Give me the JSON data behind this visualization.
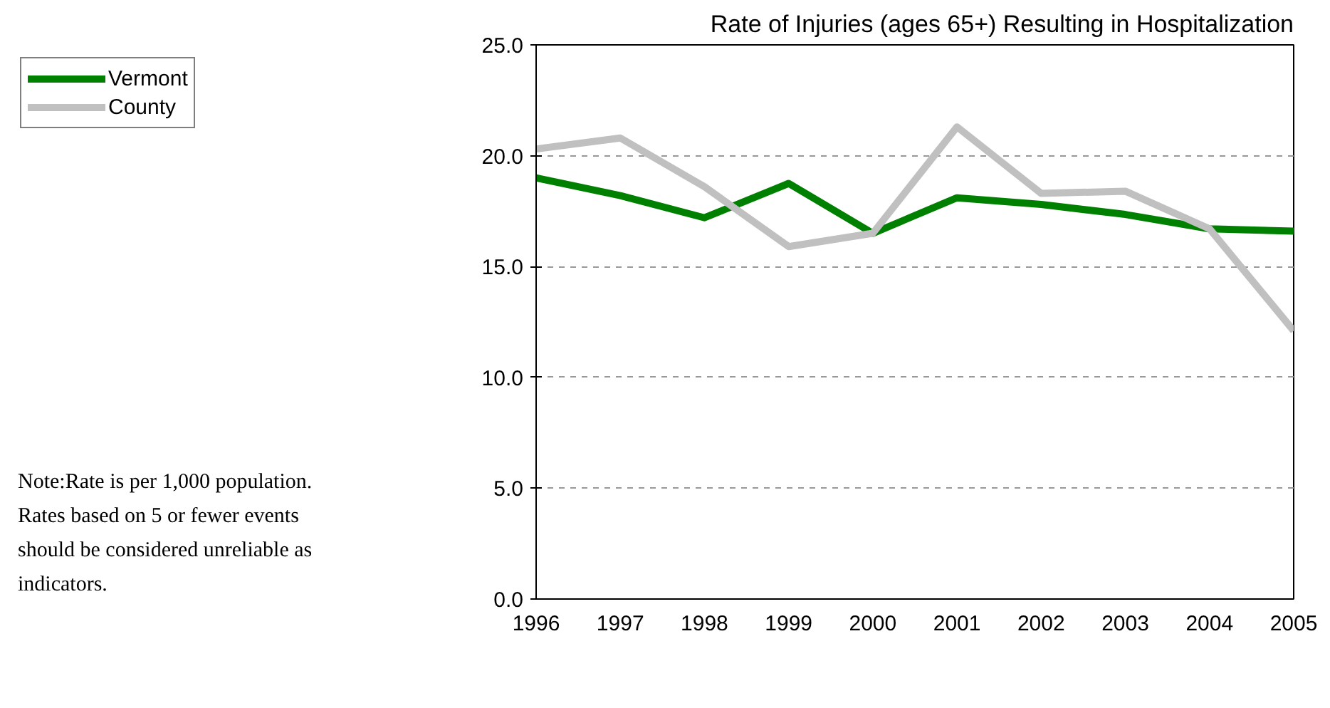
{
  "chart_data": {
    "type": "line",
    "title": "Rate of Injuries (ages 65+) Resulting in Hospitalization",
    "x": [
      1996,
      1997,
      1998,
      1999,
      2000,
      2001,
      2002,
      2003,
      2004,
      2005
    ],
    "series": [
      {
        "name": "Vermont",
        "color": "#008000",
        "values": [
          19.0,
          18.2,
          17.2,
          18.75,
          16.5,
          18.1,
          17.8,
          17.35,
          16.7,
          16.6
        ]
      },
      {
        "name": "County",
        "color": "#c0c0c0",
        "values": [
          20.3,
          20.8,
          18.6,
          15.9,
          16.5,
          21.3,
          18.3,
          18.4,
          16.7,
          12.1
        ]
      }
    ],
    "xlim": [
      1996,
      2005
    ],
    "xticks": [
      1996,
      1997,
      1998,
      1999,
      2000,
      2001,
      2002,
      2003,
      2004,
      2005
    ],
    "ylim": [
      0,
      25
    ],
    "yticks": [
      {
        "value": 0,
        "label": "0.0"
      },
      {
        "value": 5,
        "label": "5.0"
      },
      {
        "value": 10,
        "label": "10.0"
      },
      {
        "value": 15,
        "label": "15.0"
      },
      {
        "value": 20,
        "label": "20.0"
      },
      {
        "value": 25,
        "label": "25.0"
      }
    ],
    "grid": "y",
    "legend": "left",
    "line_style": "solid",
    "marker": "none",
    "annotations": [
      "Note:Rate is per 1,000 population.\nRates based on 5 or fewer events\nshould be considered unreliable as\nindicators."
    ]
  }
}
